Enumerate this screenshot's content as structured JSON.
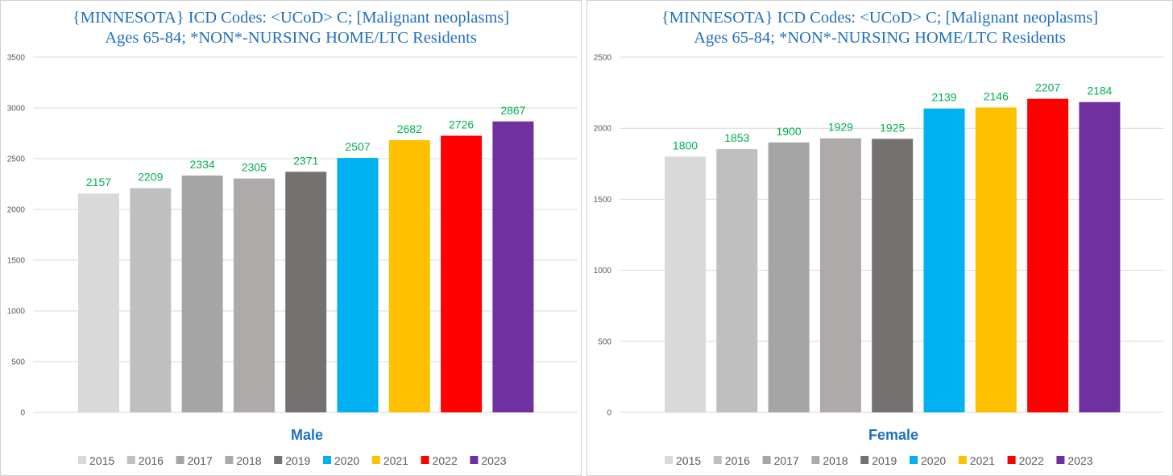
{
  "chart_data": [
    {
      "type": "bar",
      "title_line1": "{MINNESOTA}  ICD Codes: <UCoD> C;  [Malignant neoplasms]",
      "title_line2": "Ages 65-84; *NON*-NURSING HOME/LTC Residents",
      "category": "Male",
      "ylim": [
        0,
        3500
      ],
      "yticks": [
        0,
        500,
        1000,
        1500,
        2000,
        2500,
        3000,
        3500
      ],
      "grid": true,
      "legend_position": "bottom",
      "series": [
        {
          "name": "2015",
          "value": 2157,
          "color": "#d9d9d9"
        },
        {
          "name": "2016",
          "value": 2209,
          "color": "#bfbfbf"
        },
        {
          "name": "2017",
          "value": 2334,
          "color": "#a5a5a5"
        },
        {
          "name": "2018",
          "value": 2305,
          "color": "#aeaaaa"
        },
        {
          "name": "2019",
          "value": 2371,
          "color": "#767171"
        },
        {
          "name": "2020",
          "value": 2507,
          "color": "#00b0f0"
        },
        {
          "name": "2021",
          "value": 2682,
          "color": "#ffc000"
        },
        {
          "name": "2022",
          "value": 2726,
          "color": "#ff0000"
        },
        {
          "name": "2023",
          "value": 2867,
          "color": "#7030a0"
        }
      ]
    },
    {
      "type": "bar",
      "title_line1": "{MINNESOTA}  ICD Codes: <UCoD> C;  [Malignant neoplasms]",
      "title_line2": "Ages 65-84; *NON*-NURSING HOME/LTC Residents",
      "category": "Female",
      "ylim": [
        0,
        2500
      ],
      "yticks": [
        0,
        500,
        1000,
        1500,
        2000,
        2500
      ],
      "grid": true,
      "legend_position": "bottom",
      "series": [
        {
          "name": "2015",
          "value": 1800,
          "color": "#d9d9d9"
        },
        {
          "name": "2016",
          "value": 1853,
          "color": "#bfbfbf"
        },
        {
          "name": "2017",
          "value": 1900,
          "color": "#a5a5a5"
        },
        {
          "name": "2018",
          "value": 1929,
          "color": "#aeaaaa"
        },
        {
          "name": "2019",
          "value": 1925,
          "color": "#767171"
        },
        {
          "name": "2020",
          "value": 2139,
          "color": "#00b0f0"
        },
        {
          "name": "2021",
          "value": 2146,
          "color": "#ffc000"
        },
        {
          "name": "2022",
          "value": 2207,
          "color": "#ff0000"
        },
        {
          "name": "2023",
          "value": 2184,
          "color": "#7030a0"
        }
      ]
    }
  ],
  "colors": {
    "title": "#1f6fc0",
    "data_label": "#00b050",
    "category_label": "#1f6fc0",
    "axis_text": "#595959",
    "grid": "#d9d9d9"
  }
}
